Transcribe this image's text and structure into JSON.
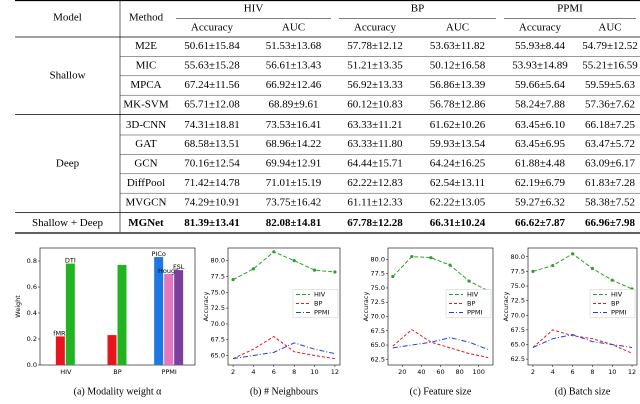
{
  "table": {
    "header": [
      "Model",
      "Method",
      "HIV",
      "BP",
      "PPMI"
    ],
    "subheader": [
      "Accuracy",
      "AUC",
      "Accuracy",
      "AUC",
      "Accuracy",
      "AUC"
    ],
    "groups": [
      {
        "name": "Shallow",
        "rows": [
          {
            "method": "M2E",
            "values": [
              "50.61±15.84",
              "51.53±13.68",
              "57.78±12.12",
              "53.63±11.82",
              "55.93±8.44",
              "54.79±12.52"
            ]
          },
          {
            "method": "MIC",
            "values": [
              "55.63±15.28",
              "56.61±13.43",
              "51.21±13.35",
              "50.12±16.58",
              "53.93±14.89",
              "55.21±16.59"
            ]
          },
          {
            "method": "MPCA",
            "values": [
              "67.24±11.56",
              "66.92±12.46",
              "56.92±13.33",
              "56.86±13.39",
              "59.66±5.64",
              "59.59±5.63"
            ]
          },
          {
            "method": "MK-SVM",
            "values": [
              "65.71±12.08",
              "68.89±9.61",
              "60.12±10.83",
              "56.78±12.86",
              "58.24±7.88",
              "57.36±7.62"
            ]
          }
        ]
      },
      {
        "name": "Deep",
        "rows": [
          {
            "method": "3D-CNN",
            "values": [
              "74.31±18.81",
              "73.53±16.41",
              "63.33±11.21",
              "61.62±10.26",
              "63.45±6.10",
              "66.18±7.25"
            ]
          },
          {
            "method": "GAT",
            "values": [
              "68.58±13.51",
              "68.96±14.22",
              "63.33±11.80",
              "59.93±13.54",
              "63.45±6.95",
              "63.47±5.72"
            ]
          },
          {
            "method": "GCN",
            "values": [
              "70.16±12.54",
              "69.94±12.91",
              "64.44±15.71",
              "64.24±16.25",
              "61.88±4.48",
              "63.09±6.17"
            ]
          },
          {
            "method": "DiffPool",
            "values": [
              "71.42±14.78",
              "71.01±15.19",
              "62.22±12.83",
              "62.54±13.11",
              "62.19±6.79",
              "61.83±7.28"
            ]
          },
          {
            "method": "MVGCN",
            "values": [
              "74.29±10.91",
              "73.75±16.42",
              "61.11±12.33",
              "62.22±13.05",
              "59.27±6.32",
              "58.38±7.52"
            ]
          }
        ]
      },
      {
        "name": "Shallow + Deep",
        "bold": true,
        "rows": [
          {
            "method": "MGNet",
            "values": [
              "81.39±13.41",
              "82.08±14.81",
              "67.78±12.28",
              "66.31±10.24",
              "66.62±7.87",
              "66.96±7.98"
            ]
          }
        ]
      }
    ]
  },
  "chart_data": [
    {
      "type": "bar",
      "caption": "(a) Modality weight α",
      "ylabel": "Weight",
      "categories": [
        "HIV",
        "BP",
        "PPMI"
      ],
      "series": [
        {
          "name": "fMRI",
          "color": "#e8141e",
          "values": [
            0.22,
            0.23,
            null
          ]
        },
        {
          "name": "DTI",
          "color": "#21b321",
          "values": [
            0.78,
            0.77,
            null
          ]
        },
        {
          "name": "PICo",
          "color": "#1f77e4",
          "values": [
            null,
            null,
            0.83
          ]
        },
        {
          "name": "Hough",
          "color": "#e377c2",
          "values": [
            null,
            null,
            0.7
          ]
        },
        {
          "name": "FSL",
          "color": "#7b3f9e",
          "values": [
            null,
            null,
            0.73
          ]
        }
      ],
      "ylim": [
        0,
        0.9
      ],
      "yticks": [
        {
          "value": 0,
          "label": "0.0"
        },
        0.2,
        0.4,
        0.6,
        0.8
      ]
    },
    {
      "type": "line",
      "caption": "(b) # Neighbours",
      "ylabel": "Accuracy",
      "legend": "center right",
      "x": [
        2,
        4,
        6,
        8,
        10,
        12
      ],
      "series": [
        {
          "name": "HIV",
          "color": "#2ca02c",
          "values": [
            77,
            78.7,
            81.4,
            80,
            78.5,
            78.2
          ]
        },
        {
          "name": "BP",
          "color": "#e8141e",
          "values": [
            64.5,
            66,
            68,
            65.6,
            65,
            64.5
          ]
        },
        {
          "name": "PPMI",
          "color": "#1f3fe4",
          "values": [
            64.5,
            65,
            65.5,
            67,
            66,
            65.3
          ]
        }
      ],
      "xlim": [
        1.5,
        12.5
      ],
      "xticks": [
        2,
        4,
        6,
        8,
        10,
        12
      ],
      "ylim": [
        63.5,
        82
      ],
      "yticks": [
        {
          "value": 65,
          "label": "65.0"
        },
        67.5,
        {
          "value": 70,
          "label": "70.0"
        },
        72.5,
        {
          "value": 75,
          "label": "75.0"
        },
        77.5,
        {
          "value": 80,
          "label": "80.0"
        }
      ]
    },
    {
      "type": "line",
      "caption": "(c) Feature size",
      "ylabel": "Accuracy",
      "legend": "center right",
      "x": [
        10,
        30,
        50,
        70,
        90,
        110
      ],
      "series": [
        {
          "name": "HIV",
          "color": "#2ca02c",
          "values": [
            77,
            80.5,
            80.3,
            79,
            76.2,
            74.5
          ]
        },
        {
          "name": "BP",
          "color": "#e8141e",
          "values": [
            64.8,
            67.7,
            65.5,
            64.5,
            63.5,
            62.8
          ]
        },
        {
          "name": "PPMI",
          "color": "#1f3fe4",
          "values": [
            64.5,
            65,
            65.5,
            66.3,
            65.5,
            64.2
          ]
        }
      ],
      "xlim": [
        5,
        115
      ],
      "xticks": [
        20,
        40,
        60,
        80,
        100
      ],
      "ylim": [
        61.5,
        82
      ],
      "yticks": [
        62.5,
        {
          "value": 65,
          "label": "65.0"
        },
        67.5,
        {
          "value": 70,
          "label": "70.0"
        },
        72.5,
        {
          "value": 75,
          "label": "75.0"
        },
        77.5,
        {
          "value": 80,
          "label": "80.0"
        }
      ]
    },
    {
      "type": "line",
      "caption": "(d) Batch size",
      "ylabel": "Accuracy",
      "legend": "center right",
      "x": [
        2,
        4,
        6,
        8,
        10,
        12
      ],
      "series": [
        {
          "name": "HIV",
          "color": "#2ca02c",
          "values": [
            77.5,
            78.5,
            80.5,
            78,
            76,
            74.5
          ]
        },
        {
          "name": "BP",
          "color": "#e8141e",
          "values": [
            64.5,
            67.5,
            66.5,
            66,
            65,
            63.5
          ]
        },
        {
          "name": "PPMI",
          "color": "#1f3fe4",
          "values": [
            64.5,
            66,
            66.7,
            65.5,
            65,
            64.5
          ]
        }
      ],
      "xlim": [
        1.5,
        12.5
      ],
      "xticks": [
        2,
        4,
        6,
        8,
        10,
        12
      ],
      "ylim": [
        61.5,
        81.5
      ],
      "yticks": [
        62.5,
        {
          "value": 65,
          "label": "65.0"
        },
        67.5,
        {
          "value": 70,
          "label": "70.0"
        },
        72.5,
        {
          "value": 75,
          "label": "75.0"
        },
        77.5,
        {
          "value": 80,
          "label": "80.0"
        }
      ]
    }
  ]
}
